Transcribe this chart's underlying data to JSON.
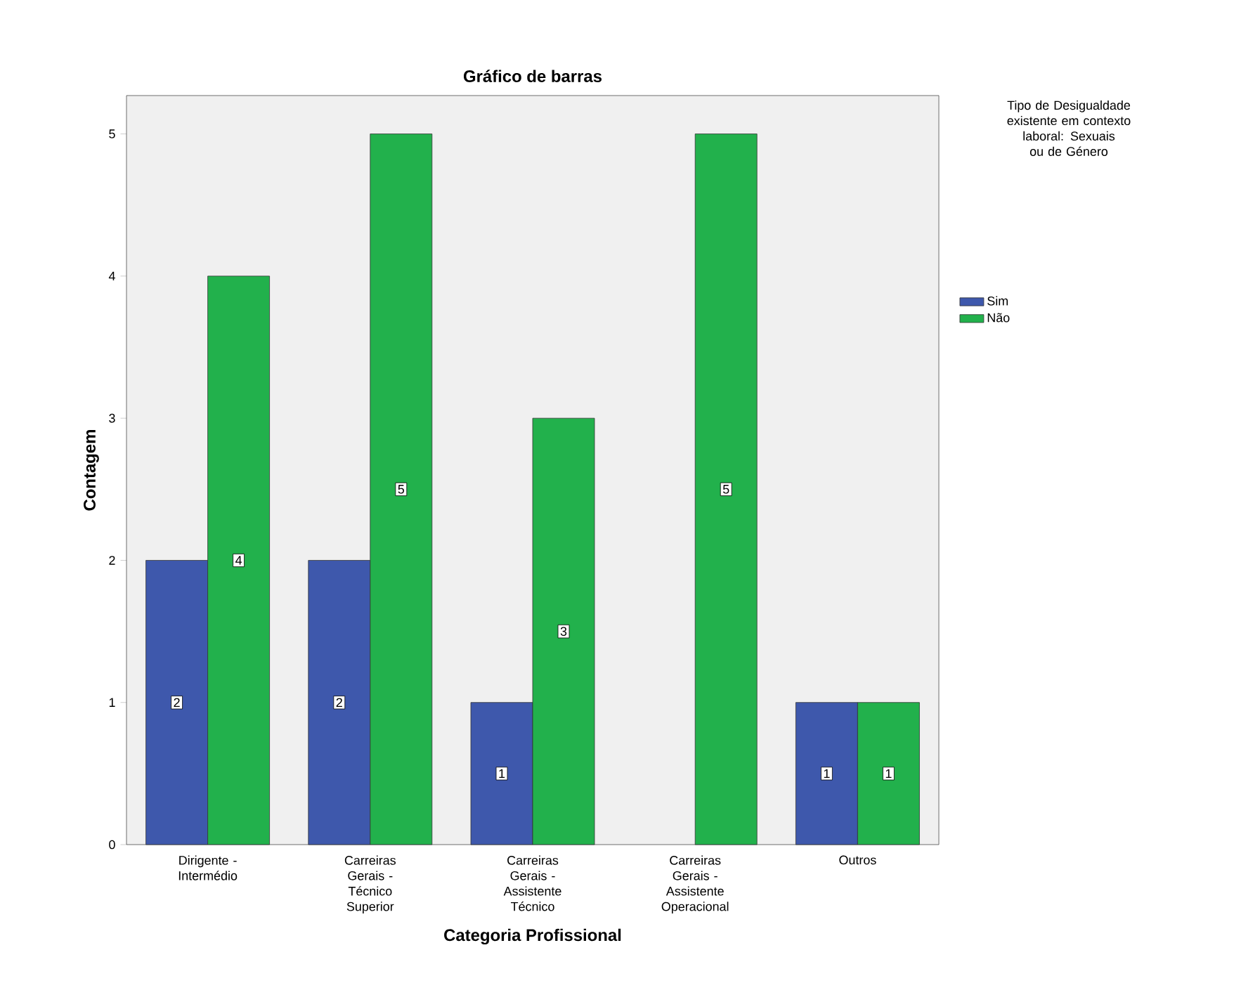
{
  "chart_data": {
    "type": "bar",
    "title": "Gráfico de barras",
    "xlabel": "Categoria Profissional",
    "ylabel": "Contagem",
    "legend_title": "Tipo de Desigualdade existente em contexto laboral: Sexuais ou de Género",
    "categories": [
      "Dirigente - Intermédio",
      "Carreiras Gerais - Técnico Superior",
      "Carreiras Gerais - Assistente Técnico",
      "Carreiras Gerais - Assistente Operacional",
      "Outros"
    ],
    "series": [
      {
        "name": "Sim",
        "color": "#3e58ac",
        "values": [
          2,
          2,
          1,
          null,
          1
        ]
      },
      {
        "name": "Não",
        "color": "#22b14c",
        "values": [
          4,
          5,
          3,
          5,
          1
        ]
      }
    ],
    "ylim": [
      0,
      5.27
    ],
    "yticks": [
      0,
      1,
      2,
      3,
      4,
      5
    ],
    "data_labels": true,
    "grid": false,
    "legend": "top right"
  }
}
